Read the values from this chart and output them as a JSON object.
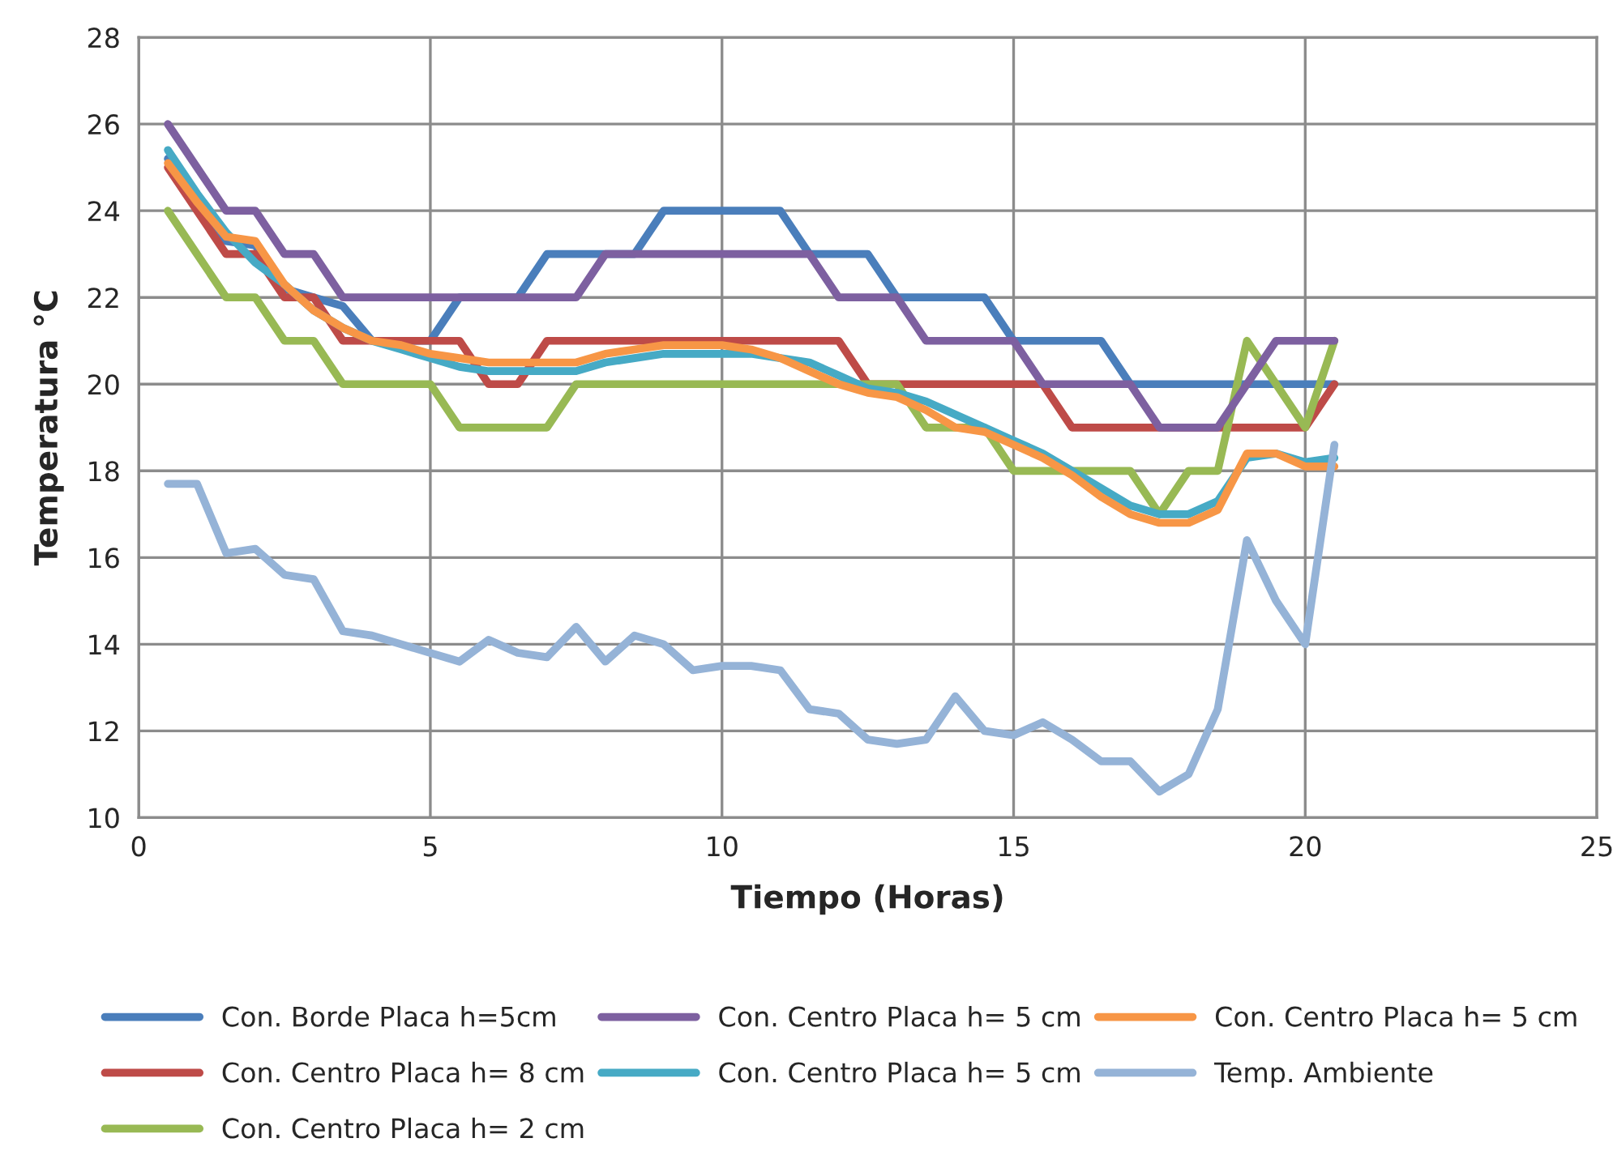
{
  "chart_data": {
    "type": "line",
    "xlabel": "Tiempo (Horas)",
    "ylabel": "Temperatura °C",
    "x": [
      0.5,
      1,
      1.5,
      2,
      2.5,
      3,
      3.5,
      4,
      4.5,
      5,
      5.5,
      6,
      6.5,
      7,
      7.5,
      8,
      8.5,
      9,
      9.5,
      10,
      10.5,
      11,
      11.5,
      12,
      12.5,
      13,
      13.5,
      14,
      14.5,
      15,
      15.5,
      16,
      16.5,
      17,
      17.5,
      18,
      18.5,
      19,
      19.5,
      20,
      20.5
    ],
    "series": [
      {
        "name": "Con. Borde Placa h=5cm",
        "color": "#4a7ebb",
        "values": [
          25.2,
          24.3,
          23.3,
          23.2,
          22.2,
          22.0,
          21.8,
          21.0,
          21.0,
          21.0,
          22.0,
          22.0,
          22.0,
          23.0,
          23.0,
          23.0,
          23.0,
          24.0,
          24.0,
          24.0,
          24.0,
          24.0,
          23.0,
          23.0,
          23.0,
          22.0,
          22.0,
          22.0,
          22.0,
          21.0,
          21.0,
          21.0,
          21.0,
          20.0,
          20.0,
          20.0,
          20.0,
          20.0,
          20.0,
          20.0,
          20.0
        ]
      },
      {
        "name": "Con. Centro Placa h= 8 cm",
        "color": "#be4b48",
        "values": [
          25.0,
          24.0,
          23.0,
          23.0,
          22.0,
          22.0,
          21.0,
          21.0,
          21.0,
          21.0,
          21.0,
          20.0,
          20.0,
          21.0,
          21.0,
          21.0,
          21.0,
          21.0,
          21.0,
          21.0,
          21.0,
          21.0,
          21.0,
          21.0,
          20.0,
          20.0,
          20.0,
          20.0,
          20.0,
          20.0,
          20.0,
          19.0,
          19.0,
          19.0,
          19.0,
          19.0,
          19.0,
          19.0,
          19.0,
          19.0,
          20.0
        ]
      },
      {
        "name": "Con. Centro Placa h= 2 cm",
        "color": "#98b954",
        "values": [
          24.0,
          23.0,
          22.0,
          22.0,
          21.0,
          21.0,
          20.0,
          20.0,
          20.0,
          20.0,
          19.0,
          19.0,
          19.0,
          19.0,
          20.0,
          20.0,
          20.0,
          20.0,
          20.0,
          20.0,
          20.0,
          20.0,
          20.0,
          20.0,
          20.0,
          20.0,
          19.0,
          19.0,
          19.0,
          18.0,
          18.0,
          18.0,
          18.0,
          18.0,
          17.0,
          18.0,
          18.0,
          21.0,
          20.0,
          19.0,
          21.0
        ]
      },
      {
        "name": "Con. Centro Placa h= 5 cm",
        "color": "#7d60a0",
        "values": [
          26.0,
          25.0,
          24.0,
          24.0,
          23.0,
          23.0,
          22.0,
          22.0,
          22.0,
          22.0,
          22.0,
          22.0,
          22.0,
          22.0,
          22.0,
          23.0,
          23.0,
          23.0,
          23.0,
          23.0,
          23.0,
          23.0,
          23.0,
          22.0,
          22.0,
          22.0,
          21.0,
          21.0,
          21.0,
          21.0,
          20.0,
          20.0,
          20.0,
          20.0,
          19.0,
          19.0,
          19.0,
          20.0,
          21.0,
          21.0,
          21.0
        ]
      },
      {
        "name": "Con. Centro Placa h= 5 cm",
        "color": "#46aac5",
        "values": [
          25.4,
          24.4,
          23.5,
          22.8,
          22.3,
          21.7,
          21.3,
          21.0,
          20.8,
          20.6,
          20.4,
          20.3,
          20.3,
          20.3,
          20.3,
          20.5,
          20.6,
          20.7,
          20.7,
          20.7,
          20.7,
          20.6,
          20.5,
          20.2,
          19.9,
          19.8,
          19.6,
          19.3,
          19.0,
          18.7,
          18.4,
          18.0,
          17.6,
          17.2,
          17.0,
          17.0,
          17.3,
          18.3,
          18.4,
          18.2,
          18.3
        ]
      },
      {
        "name": "Con. Centro Placa h= 5 cm",
        "color": "#f79646",
        "values": [
          25.1,
          24.2,
          23.4,
          23.3,
          22.3,
          21.7,
          21.3,
          21.0,
          20.9,
          20.7,
          20.6,
          20.5,
          20.5,
          20.5,
          20.5,
          20.7,
          20.8,
          20.9,
          20.9,
          20.9,
          20.8,
          20.6,
          20.3,
          20.0,
          19.8,
          19.7,
          19.4,
          19.0,
          18.9,
          18.6,
          18.3,
          17.9,
          17.4,
          17.0,
          16.8,
          16.8,
          17.1,
          18.4,
          18.4,
          18.1,
          18.1
        ]
      },
      {
        "name": "Temp. Ambiente",
        "color": "#95b3d7",
        "values": [
          17.7,
          17.7,
          16.1,
          16.2,
          15.6,
          15.5,
          14.3,
          14.2,
          14.0,
          13.8,
          13.6,
          14.1,
          13.8,
          13.7,
          14.4,
          13.6,
          14.2,
          14.0,
          13.4,
          13.5,
          13.5,
          13.4,
          12.5,
          12.4,
          11.8,
          11.7,
          11.8,
          12.8,
          12.0,
          11.9,
          12.2,
          11.8,
          11.3,
          11.3,
          10.6,
          11.0,
          12.5,
          16.4,
          15.0,
          14.0,
          18.6
        ]
      }
    ],
    "xlim": [
      0,
      25
    ],
    "xticks": [
      0,
      5,
      10,
      15,
      20,
      25
    ],
    "ylim": [
      10,
      28
    ],
    "yticks": [
      10,
      12,
      14,
      16,
      18,
      20,
      22,
      24,
      26,
      28
    ],
    "grid": true,
    "legend": "bottom",
    "marker": "none",
    "line_style": "solid"
  }
}
